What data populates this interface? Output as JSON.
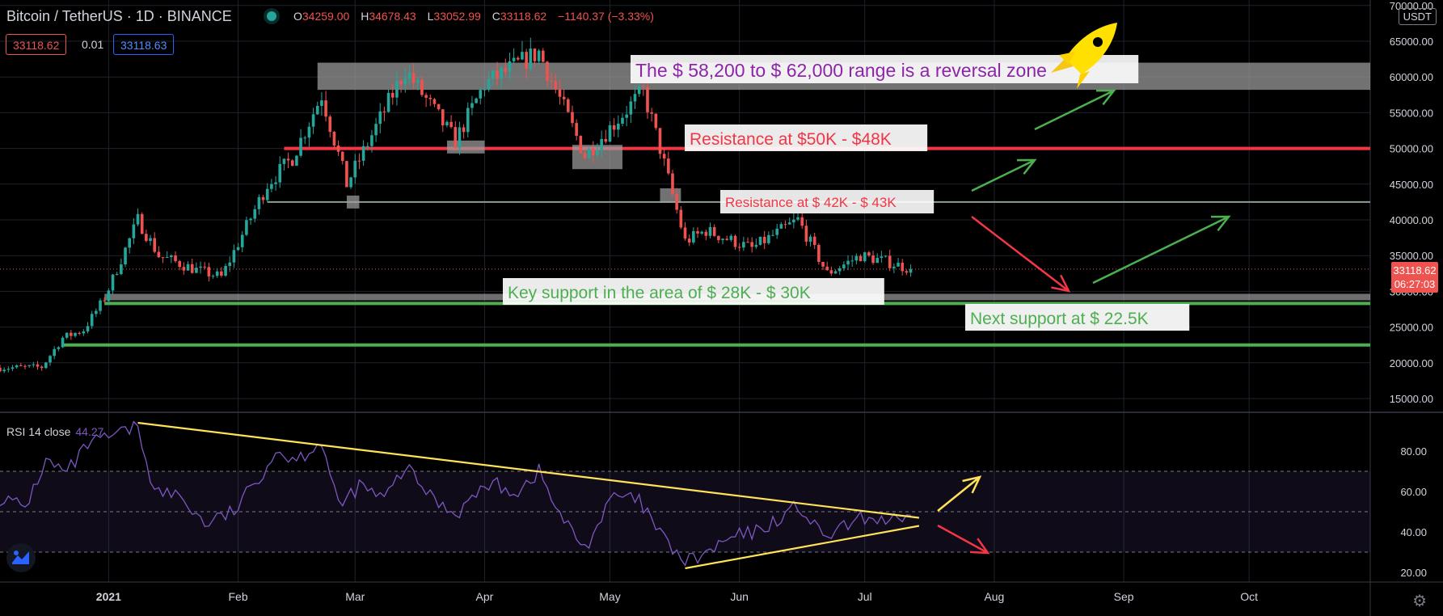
{
  "header": {
    "symbol": "Bitcoin / TetherUS · 1D · BINANCE",
    "o_label": "O",
    "o": "34259.00",
    "h_label": "H",
    "h": "34678.43",
    "l_label": "L",
    "l": "33052.99",
    "c_label": "C",
    "c": "33118.62",
    "change": "−1140.37 (−3.33%)",
    "bid": "33118.62",
    "spread": "0.01",
    "ask": "33118.63",
    "currency": "USDT"
  },
  "price_tag": {
    "price": "33118.62",
    "countdown": "06:27:03"
  },
  "rsi": {
    "label": "RSI 14 close",
    "value": "44.27"
  },
  "colors": {
    "bull": "#26a69a",
    "bear": "#ef5350",
    "rsi": "#7e57c2",
    "support": "#4caf50",
    "resistance": "#f23645",
    "trend": "#ffe25a",
    "zone": "#9e9e9e",
    "text_purple": "#8e24aa"
  },
  "chart_data": [
    {
      "type": "candlestick",
      "title": "",
      "ylim": [
        13000,
        70000
      ],
      "y_ticks": [
        15000,
        20000,
        25000,
        30000,
        35000,
        40000,
        45000,
        50000,
        55000,
        60000,
        65000,
        70000
      ],
      "y_tick_labels": [
        "15000.00",
        "20000.00",
        "25000.00",
        "30000.00",
        "35000.00",
        "40000.00",
        "45000.00",
        "50000.00",
        "55000.00",
        "60000.00",
        "65000.00",
        "70000.00"
      ],
      "x_tick_labels": [
        "2021",
        "Feb",
        "Mar",
        "Apr",
        "May",
        "Jun",
        "Jul",
        "Aug",
        "Sep",
        "Oct"
      ],
      "x_tick_dates": [
        "2021-01-01",
        "2021-02-01",
        "2021-03-01",
        "2021-04-01",
        "2021-05-01",
        "2021-06-01",
        "2021-07-01",
        "2021-08-01",
        "2021-09-01",
        "2021-10-01"
      ],
      "date_range": [
        "2020-12-06",
        "2021-10-30"
      ],
      "close_keypoints": [
        [
          "2020-12-06",
          19300
        ],
        [
          "2020-12-16",
          19400
        ],
        [
          "2020-12-21",
          23500
        ],
        [
          "2020-12-26",
          24600
        ],
        [
          "2020-12-31",
          29000
        ],
        [
          "2021-01-08",
          40000
        ],
        [
          "2021-01-13",
          35000
        ],
        [
          "2021-01-22",
          33000
        ],
        [
          "2021-01-28",
          32000
        ],
        [
          "2021-02-08",
          45000
        ],
        [
          "2021-02-14",
          48700
        ],
        [
          "2021-02-21",
          57500
        ],
        [
          "2021-02-27",
          45000
        ],
        [
          "2021-03-13",
          61000
        ],
        [
          "2021-03-25",
          51000
        ],
        [
          "2021-04-01",
          59000
        ],
        [
          "2021-04-14",
          63500
        ],
        [
          "2021-04-25",
          49000
        ],
        [
          "2021-05-09",
          58000
        ],
        [
          "2021-05-13",
          50000
        ],
        [
          "2021-05-19",
          37000
        ],
        [
          "2021-05-24",
          38500
        ],
        [
          "2021-06-04",
          36000
        ],
        [
          "2021-06-15",
          40000
        ],
        [
          "2021-06-22",
          32500
        ],
        [
          "2021-06-30",
          35000
        ],
        [
          "2021-07-06",
          34200
        ],
        [
          "2021-07-12",
          33118.62
        ]
      ],
      "zones": [
        {
          "from": "2021-02-20",
          "to": "2021-10-30",
          "low": 58200,
          "high": 62000
        }
      ],
      "levels": [
        {
          "price": 50000,
          "from": "2021-02-12",
          "to": "2021-10-30",
          "kind": "resistance"
        },
        {
          "price": 42500,
          "from": "2021-02-08",
          "to": "2021-10-30",
          "kind": "minor"
        },
        {
          "price": 29200,
          "from": "2020-12-31",
          "to": "2021-10-30",
          "kind": "support-zone"
        },
        {
          "price": 28300,
          "from": "2020-12-31",
          "to": "2021-10-30",
          "kind": "support"
        },
        {
          "price": 22500,
          "from": "2020-12-21",
          "to": "2021-10-30",
          "kind": "support"
        }
      ],
      "annotations": [
        {
          "text": "The $ 58,200 to $ 62,000 range is a reversal zone",
          "color": "#8e24aa",
          "size": 23
        },
        {
          "text": "Resistance at $50K - $48K",
          "color": "#f23645",
          "size": 21
        },
        {
          "text": "Resistance at $ 42K - $ 43K",
          "color": "#f23645",
          "size": 17
        },
        {
          "text": "Key support in the area of $ 28K - $ 30K",
          "color": "#4caf50",
          "size": 21
        },
        {
          "text": "Next support at $ 22.5K",
          "color": "#4caf50",
          "size": 21
        }
      ],
      "current_price": 33118.62
    },
    {
      "type": "line",
      "title": "RSI 14 close",
      "ylim": [
        15,
        100
      ],
      "y_ticks": [
        20,
        40,
        60,
        80
      ],
      "y_tick_labels": [
        "20.00",
        "40.00",
        "60.00",
        "80.00"
      ],
      "bands": [
        30,
        50,
        70
      ],
      "series": [
        {
          "name": "RSI 14 close",
          "points": [
            [
              "2020-12-06",
              57
            ],
            [
              "2020-12-12",
              52
            ],
            [
              "2020-12-17",
              75
            ],
            [
              "2020-12-22",
              69
            ],
            [
              "2020-12-27",
              83
            ],
            [
              "2021-01-03",
              88
            ],
            [
              "2021-01-08",
              92
            ],
            [
              "2021-01-12",
              60
            ],
            [
              "2021-01-18",
              58
            ],
            [
              "2021-01-24",
              44
            ],
            [
              "2021-01-31",
              50
            ],
            [
              "2021-02-05",
              64
            ],
            [
              "2021-02-10",
              80
            ],
            [
              "2021-02-15",
              76
            ],
            [
              "2021-02-21",
              85
            ],
            [
              "2021-02-25",
              52
            ],
            [
              "2021-03-02",
              63
            ],
            [
              "2021-03-08",
              56
            ],
            [
              "2021-03-13",
              72
            ],
            [
              "2021-03-19",
              58
            ],
            [
              "2021-03-25",
              49
            ],
            [
              "2021-04-02",
              64
            ],
            [
              "2021-04-09",
              60
            ],
            [
              "2021-04-14",
              70
            ],
            [
              "2021-04-19",
              48
            ],
            [
              "2021-04-25",
              32
            ],
            [
              "2021-05-02",
              58
            ],
            [
              "2021-05-08",
              55
            ],
            [
              "2021-05-14",
              36
            ],
            [
              "2021-05-19",
              25
            ],
            [
              "2021-05-24",
              29
            ],
            [
              "2021-05-30",
              37
            ],
            [
              "2021-06-05",
              40
            ],
            [
              "2021-06-10",
              46
            ],
            [
              "2021-06-15",
              53
            ],
            [
              "2021-06-21",
              37
            ],
            [
              "2021-06-26",
              42
            ],
            [
              "2021-07-01",
              47
            ],
            [
              "2021-07-06",
              46
            ],
            [
              "2021-07-12",
              44.27
            ]
          ]
        }
      ],
      "trendlines": [
        {
          "from": [
            "2021-01-08",
            94
          ],
          "to": [
            "2021-07-14",
            47
          ]
        },
        {
          "from": [
            "2021-05-19",
            22
          ],
          "to": [
            "2021-07-14",
            43
          ]
        }
      ]
    }
  ]
}
